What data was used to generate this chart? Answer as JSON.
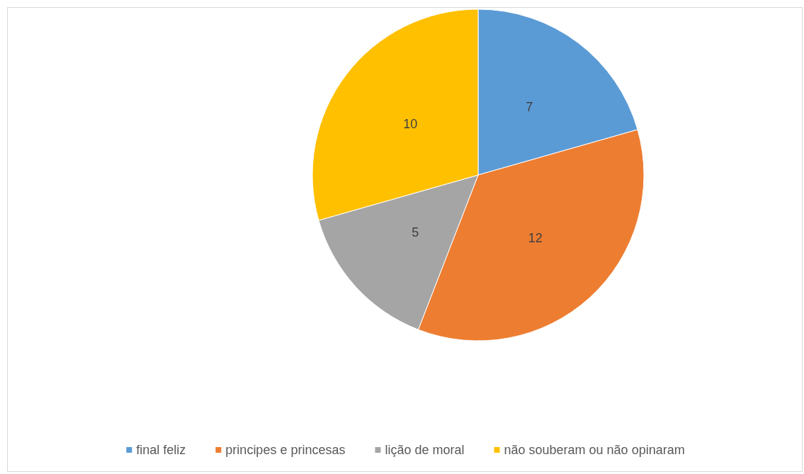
{
  "chart_data": {
    "type": "pie",
    "categories": [
      "final feliz",
      "principes e princesas",
      "lição de moral",
      "não souberam ou não opinaram"
    ],
    "values": [
      7,
      12,
      5,
      10
    ],
    "colors": [
      "#5b9bd5",
      "#ed7d31",
      "#a5a5a5",
      "#ffc000"
    ],
    "data_labels": true,
    "legend": "bottom"
  }
}
